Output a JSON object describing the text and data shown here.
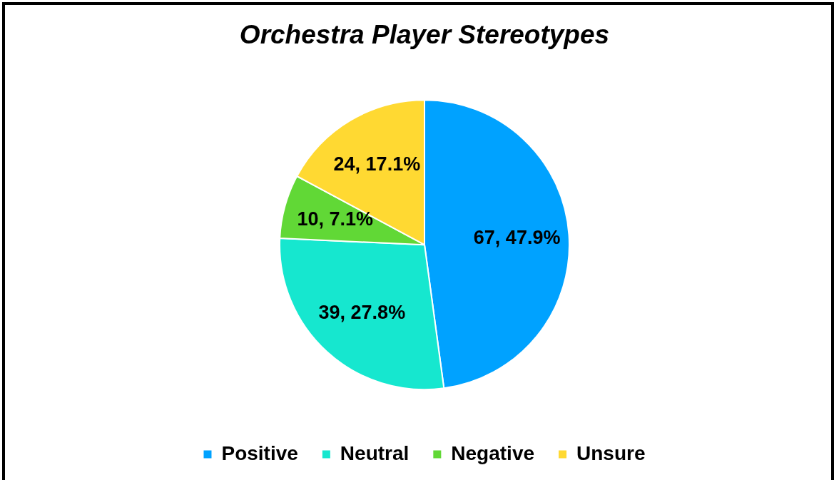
{
  "chart_data": {
    "type": "pie",
    "title": "Orchestra Player Stereotypes",
    "categories": [
      "Positive",
      "Neutral",
      "Negative",
      "Unsure"
    ],
    "values": [
      67,
      39,
      10,
      24
    ],
    "colors": [
      "#00a2ff",
      "#16e7cf",
      "#61d836",
      "#ffd932"
    ],
    "value_labels": [
      "67, 47.9%",
      "39, 27.8%",
      "10, 7.1%",
      "24, 17.1%"
    ],
    "legend": "bottom"
  }
}
